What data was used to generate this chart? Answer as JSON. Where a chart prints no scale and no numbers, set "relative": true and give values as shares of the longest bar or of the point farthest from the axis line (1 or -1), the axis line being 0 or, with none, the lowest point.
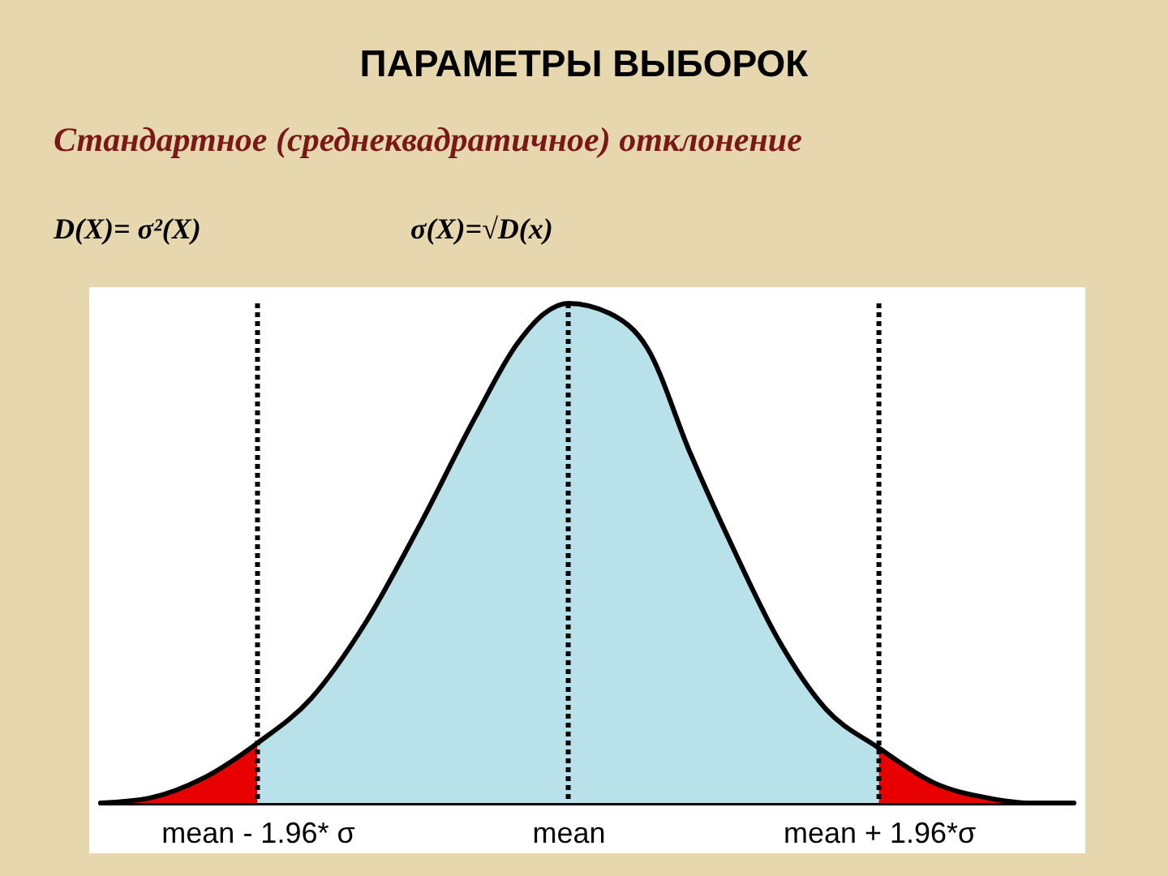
{
  "chart_data": {
    "type": "area",
    "title": "ПАРАМЕТРЫ ВЫБОРОК",
    "subtitle": "Стандартное (среднеквадратичное) отклонение",
    "annotations": [
      "D(X)= σ²(X)",
      "σ(X)=√D(x)"
    ],
    "relative": true,
    "xlim": [
      -2.95,
      3.19
    ],
    "xticks": [
      {
        "value": -1.96,
        "label": "mean - 1.96* σ"
      },
      {
        "value": 0,
        "label": "mean"
      },
      {
        "value": 1.96,
        "label": "mean + 1.96*σ"
      }
    ],
    "series": [
      {
        "color": "#e80000",
        "x": [
          -2.95,
          -2.64,
          -2.3,
          -1.96
        ],
        "values": [
          0,
          0.01,
          0.05,
          0.12
        ]
      },
      {
        "color": "#b9e1ea",
        "x": [
          -1.96,
          -1.62,
          -1.28,
          -0.93,
          -0.59,
          -0.32,
          -0.15,
          0,
          0.26,
          0.5,
          0.77,
          1.04,
          1.32,
          1.62,
          1.96
        ],
        "values": [
          0.12,
          0.21,
          0.36,
          0.56,
          0.77,
          0.92,
          0.98,
          1,
          0.98,
          0.91,
          0.7,
          0.51,
          0.33,
          0.19,
          0.11
        ]
      },
      {
        "color": "#e80000",
        "x": [
          1.96,
          2.31,
          2.65,
          2.92,
          3.19
        ],
        "values": [
          0.11,
          0.04,
          0.01,
          0,
          0
        ]
      },
      {
        "type": "line",
        "color": "#000000",
        "x": [
          -2.95,
          -2.64,
          -2.3,
          -1.96,
          -1.62,
          -1.28,
          -0.93,
          -0.59,
          -0.32,
          -0.15,
          0,
          0.26,
          0.5,
          0.77,
          1.04,
          1.32,
          1.62,
          1.96,
          2.31,
          2.65,
          2.92,
          3.19
        ],
        "values": [
          0,
          0.01,
          0.05,
          0.12,
          0.21,
          0.36,
          0.56,
          0.77,
          0.92,
          0.98,
          1,
          0.98,
          0.91,
          0.7,
          0.51,
          0.33,
          0.19,
          0.11,
          0.04,
          0.01,
          0,
          0
        ]
      }
    ],
    "ref_lines": [
      {
        "axis": "x",
        "value": -1.96,
        "color": "#000000",
        "line_style": "dotted"
      },
      {
        "axis": "x",
        "value": 0,
        "color": "#000000",
        "line_style": "dotted"
      },
      {
        "axis": "x",
        "value": 1.96,
        "color": "#000000",
        "line_style": "dotted"
      }
    ]
  }
}
